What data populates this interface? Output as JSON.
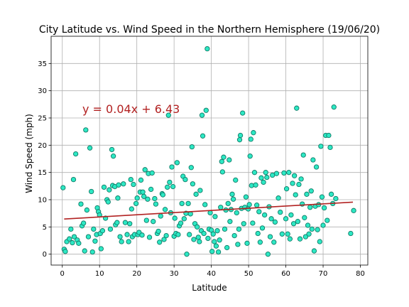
{
  "chart_data": {
    "type": "scatter",
    "title": "City Latitude vs. Wind Speed in the Northern Hemisphere (19/06/20)",
    "xlabel": "Latitude",
    "ylabel": "Wind Speed (mph)",
    "xlim": [
      -3,
      82
    ],
    "ylim": [
      -2,
      40
    ],
    "xticks": [
      0,
      10,
      20,
      30,
      40,
      50,
      60,
      70,
      80
    ],
    "yticks": [
      0,
      5,
      10,
      15,
      20,
      25,
      30,
      35
    ],
    "grid": true,
    "colors": {
      "marker_fill": "#2de8c4",
      "marker_edge": "#107a66",
      "regression_line": "#b22222",
      "annotation": "#b22222",
      "grid": "#b0b0b0"
    },
    "annotation": "y = 0.04x + 6.43",
    "regression": {
      "slope": 0.04,
      "intercept": 6.43,
      "x_range": [
        0.5,
        78
      ]
    },
    "points": [
      [
        0.2,
        12.2
      ],
      [
        0.5,
        0.9
      ],
      [
        0.8,
        0.5
      ],
      [
        1.2,
        2.3
      ],
      [
        1.9,
        2.8
      ],
      [
        2.3,
        4.6
      ],
      [
        2.7,
        2.1
      ],
      [
        3.0,
        13.7
      ],
      [
        3.2,
        3.2
      ],
      [
        3.6,
        18.4
      ],
      [
        4.0,
        2.6
      ],
      [
        4.4,
        2.0
      ],
      [
        5.0,
        9.2
      ],
      [
        5.3,
        5.2
      ],
      [
        5.7,
        5.7
      ],
      [
        6.0,
        0.6
      ],
      [
        6.3,
        22.8
      ],
      [
        6.6,
        8.1
      ],
      [
        7.0,
        3.2
      ],
      [
        7.4,
        19.5
      ],
      [
        7.8,
        11.5
      ],
      [
        8.1,
        0.4
      ],
      [
        8.4,
        4.6
      ],
      [
        8.8,
        2.4
      ],
      [
        9.2,
        3.6
      ],
      [
        9.4,
        8.5
      ],
      [
        9.7,
        7.8
      ],
      [
        10.0,
        7.2
      ],
      [
        10.2,
        3.8
      ],
      [
        10.4,
        1.0
      ],
      [
        10.8,
        4.3
      ],
      [
        11.2,
        12.3
      ],
      [
        11.6,
        6.6
      ],
      [
        12.0,
        10.0
      ],
      [
        12.3,
        9.6
      ],
      [
        12.6,
        11.8
      ],
      [
        12.9,
        4.6
      ],
      [
        13.3,
        19.2
      ],
      [
        13.5,
        12.6
      ],
      [
        13.7,
        18.0
      ],
      [
        14.1,
        12.4
      ],
      [
        14.3,
        5.4
      ],
      [
        14.7,
        5.8
      ],
      [
        14.9,
        10.3
      ],
      [
        15.1,
        12.7
      ],
      [
        15.5,
        3.2
      ],
      [
        15.9,
        2.3
      ],
      [
        16.4,
        12.9
      ],
      [
        16.9,
        5.8
      ],
      [
        17.4,
        3.6
      ],
      [
        17.8,
        2.3
      ],
      [
        18.1,
        5.6
      ],
      [
        18.4,
        13.7
      ],
      [
        18.6,
        8.3
      ],
      [
        18.8,
        3.2
      ],
      [
        19.1,
        12.8
      ],
      [
        19.4,
        3.6
      ],
      [
        19.8,
        9.3
      ],
      [
        20.1,
        10.3
      ],
      [
        20.3,
        3.6
      ],
      [
        20.6,
        4.0
      ],
      [
        20.9,
        11.4
      ],
      [
        21.1,
        13.6
      ],
      [
        21.4,
        3.5
      ],
      [
        21.6,
        11.4
      ],
      [
        21.9,
        10.6
      ],
      [
        22.2,
        15.5
      ],
      [
        22.6,
        6.2
      ],
      [
        22.9,
        10.1
      ],
      [
        23.1,
        14.8
      ],
      [
        23.4,
        3.1
      ],
      [
        23.8,
        11.9
      ],
      [
        24.1,
        14.9
      ],
      [
        24.4,
        6.0
      ],
      [
        24.8,
        10.2
      ],
      [
        25.1,
        9.2
      ],
      [
        25.5,
        3.8
      ],
      [
        25.8,
        4.2
      ],
      [
        26.1,
        2.2
      ],
      [
        26.4,
        7.0
      ],
      [
        26.8,
        11.1
      ],
      [
        27.0,
        10.9
      ],
      [
        27.3,
        2.7
      ],
      [
        27.6,
        8.2
      ],
      [
        27.9,
        3.4
      ],
      [
        28.2,
        12.3
      ],
      [
        28.5,
        25.5
      ],
      [
        28.8,
        13.2
      ],
      [
        29.1,
        7.6
      ],
      [
        29.4,
        16.0
      ],
      [
        29.7,
        12.4
      ],
      [
        30.0,
        3.3
      ],
      [
        30.2,
        6.6
      ],
      [
        30.5,
        3.8
      ],
      [
        30.8,
        16.8
      ],
      [
        31.1,
        3.6
      ],
      [
        31.4,
        5.2
      ],
      [
        31.8,
        5.7
      ],
      [
        32.1,
        9.3
      ],
      [
        32.4,
        14.3
      ],
      [
        32.7,
        6.5
      ],
      [
        33.0,
        13.7
      ],
      [
        33.2,
        7.5
      ],
      [
        33.4,
        0.0
      ],
      [
        33.8,
        9.3
      ],
      [
        34.1,
        3.6
      ],
      [
        34.4,
        7.4
      ],
      [
        34.6,
        15.9
      ],
      [
        34.8,
        19.7
      ],
      [
        35.0,
        12.9
      ],
      [
        35.3,
        2.7
      ],
      [
        35.6,
        5.6
      ],
      [
        35.9,
        11.0
      ],
      [
        36.2,
        5.0
      ],
      [
        36.5,
        3.1
      ],
      [
        36.8,
        2.3
      ],
      [
        37.0,
        11.7
      ],
      [
        37.3,
        4.3
      ],
      [
        37.5,
        25.5
      ],
      [
        37.7,
        21.7
      ],
      [
        38.0,
        3.8
      ],
      [
        38.3,
        9.1
      ],
      [
        38.6,
        26.4
      ],
      [
        38.9,
        37.7
      ],
      [
        39.1,
        2.9
      ],
      [
        39.4,
        4.6
      ],
      [
        39.7,
        7.6
      ],
      [
        40.0,
        4.4
      ],
      [
        40.2,
        0.5
      ],
      [
        40.5,
        3.7
      ],
      [
        40.8,
        2.3
      ],
      [
        41.0,
        6.9
      ],
      [
        41.3,
        1.5
      ],
      [
        41.6,
        4.3
      ],
      [
        41.9,
        0.4
      ],
      [
        42.2,
        2.6
      ],
      [
        42.5,
        8.6
      ],
      [
        42.8,
        17.0
      ],
      [
        43.0,
        15.1
      ],
      [
        43.3,
        17.8
      ],
      [
        43.6,
        4.6
      ],
      [
        43.9,
        8.1
      ],
      [
        44.2,
        1.2
      ],
      [
        44.5,
        9.3
      ],
      [
        44.8,
        17.3
      ],
      [
        45.0,
        6.0
      ],
      [
        45.3,
        8.2
      ],
      [
        45.6,
        11.0
      ],
      [
        45.9,
        10.1
      ],
      [
        46.2,
        3.4
      ],
      [
        46.5,
        13.6
      ],
      [
        46.8,
        7.6
      ],
      [
        47.1,
        1.8
      ],
      [
        47.4,
        4.6
      ],
      [
        47.6,
        21.0
      ],
      [
        47.8,
        21.8
      ],
      [
        48.1,
        8.4
      ],
      [
        48.4,
        25.9
      ],
      [
        48.7,
        5.6
      ],
      [
        49.0,
        8.6
      ],
      [
        49.3,
        10.5
      ],
      [
        49.6,
        2.0
      ],
      [
        49.9,
        8.3
      ],
      [
        50.2,
        9.1
      ],
      [
        50.4,
        18.0
      ],
      [
        50.6,
        21.1
      ],
      [
        50.8,
        12.6
      ],
      [
        51.1,
        5.7
      ],
      [
        51.3,
        22.3
      ],
      [
        51.6,
        15.0
      ],
      [
        51.9,
        12.7
      ],
      [
        52.2,
        9.0
      ],
      [
        52.5,
        3.8
      ],
      [
        52.8,
        7.8
      ],
      [
        53.1,
        2.2
      ],
      [
        53.4,
        14.0
      ],
      [
        53.7,
        4.8
      ],
      [
        54.0,
        13.2
      ],
      [
        54.3,
        7.2
      ],
      [
        54.6,
        15.0
      ],
      [
        54.9,
        14.1
      ],
      [
        55.2,
        0.0
      ],
      [
        55.5,
        8.7
      ],
      [
        55.8,
        3.2
      ],
      [
        56.1,
        6.5
      ],
      [
        56.4,
        14.5
      ],
      [
        56.8,
        2.2
      ],
      [
        57.1,
        5.9
      ],
      [
        57.5,
        14.8
      ],
      [
        58.0,
        10.3
      ],
      [
        58.5,
        7.7
      ],
      [
        59.0,
        3.7
      ],
      [
        59.5,
        14.9
      ],
      [
        60.0,
        6.5
      ],
      [
        60.2,
        12.0
      ],
      [
        60.5,
        3.7
      ],
      [
        60.8,
        15.0
      ],
      [
        61.1,
        2.8
      ],
      [
        61.4,
        7.2
      ],
      [
        61.8,
        13.0
      ],
      [
        62.1,
        5.6
      ],
      [
        62.3,
        14.4
      ],
      [
        62.6,
        10.9
      ],
      [
        62.9,
        26.8
      ],
      [
        63.2,
        6.0
      ],
      [
        63.5,
        12.8
      ],
      [
        63.8,
        2.8
      ],
      [
        64.1,
        13.8
      ],
      [
        64.4,
        9.2
      ],
      [
        64.7,
        18.2
      ],
      [
        65.0,
        6.7
      ],
      [
        65.3,
        3.2
      ],
      [
        65.6,
        11.0
      ],
      [
        65.9,
        5.3
      ],
      [
        66.2,
        3.7
      ],
      [
        66.5,
        8.6
      ],
      [
        66.8,
        11.6
      ],
      [
        67.0,
        4.6
      ],
      [
        67.3,
        17.3
      ],
      [
        67.6,
        0.6
      ],
      [
        67.9,
        8.8
      ],
      [
        68.2,
        16.0
      ],
      [
        68.5,
        4.5
      ],
      [
        68.8,
        9.1
      ],
      [
        69.1,
        2.3
      ],
      [
        69.4,
        19.8
      ],
      [
        69.7,
        10.5
      ],
      [
        70.0,
        5.3
      ],
      [
        70.3,
        8.5
      ],
      [
        70.7,
        21.8
      ],
      [
        71.1,
        6.2
      ],
      [
        71.5,
        21.8
      ],
      [
        71.9,
        19.6
      ],
      [
        72.2,
        11.0
      ],
      [
        72.6,
        9.3
      ],
      [
        72.9,
        27.0
      ],
      [
        73.4,
        10.2
      ],
      [
        77.4,
        3.8
      ],
      [
        78.2,
        8.0
      ]
    ]
  }
}
